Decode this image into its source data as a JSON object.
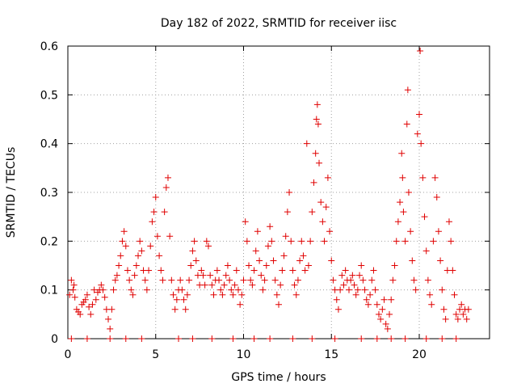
{
  "chart_data": {
    "type": "scatter",
    "title": "Day 182 of 2022, SRMTID for receiver iisc",
    "xlabel": "GPS time / hours",
    "ylabel": "SRMTID / TECUs",
    "xlim": [
      0,
      24
    ],
    "ylim": [
      0,
      0.6
    ],
    "xticks": [
      0,
      5,
      10,
      15,
      20
    ],
    "yticks": [
      0,
      0.1,
      0.2,
      0.3,
      0.4,
      0.5,
      0.6
    ],
    "xtick_labels": [
      "0",
      "5",
      "10",
      "15",
      "20"
    ],
    "ytick_labels": [
      "0",
      "0.1",
      "0.2",
      "0.3",
      "0.4",
      "0.5",
      "0.6"
    ],
    "grid": true,
    "marker": "+",
    "series": [
      {
        "name": "SRMTID",
        "color": "#e00000",
        "points": [
          [
            0.1,
            0.09
          ],
          [
            0.2,
            0.12
          ],
          [
            0.3,
            0.1
          ],
          [
            0.35,
            0.11
          ],
          [
            0.4,
            0.085
          ],
          [
            0.5,
            0.06
          ],
          [
            0.6,
            0.055
          ],
          [
            0.7,
            0.05
          ],
          [
            0.8,
            0.07
          ],
          [
            0.9,
            0.075
          ],
          [
            1.0,
            0.08
          ],
          [
            1.1,
            0.09
          ],
          [
            1.2,
            0.065
          ],
          [
            1.3,
            0.05
          ],
          [
            1.4,
            0.07
          ],
          [
            1.5,
            0.1
          ],
          [
            1.6,
            0.08
          ],
          [
            1.7,
            0.095
          ],
          [
            1.8,
            0.1
          ],
          [
            1.9,
            0.11
          ],
          [
            2.0,
            0.1
          ],
          [
            2.1,
            0.085
          ],
          [
            2.2,
            0.06
          ],
          [
            2.3,
            0.04
          ],
          [
            2.4,
            0.02
          ],
          [
            2.5,
            0.06
          ],
          [
            2.6,
            0.1
          ],
          [
            2.7,
            0.12
          ],
          [
            2.8,
            0.13
          ],
          [
            2.9,
            0.15
          ],
          [
            3.0,
            0.17
          ],
          [
            3.1,
            0.2
          ],
          [
            3.2,
            0.22
          ],
          [
            3.3,
            0.19
          ],
          [
            3.4,
            0.14
          ],
          [
            3.5,
            0.12
          ],
          [
            3.6,
            0.1
          ],
          [
            3.7,
            0.09
          ],
          [
            3.8,
            0.13
          ],
          [
            3.9,
            0.15
          ],
          [
            4.0,
            0.17
          ],
          [
            4.1,
            0.2
          ],
          [
            4.2,
            0.18
          ],
          [
            4.3,
            0.14
          ],
          [
            4.4,
            0.12
          ],
          [
            4.5,
            0.1
          ],
          [
            4.6,
            0.14
          ],
          [
            4.7,
            0.19
          ],
          [
            4.8,
            0.24
          ],
          [
            4.9,
            0.26
          ],
          [
            5.0,
            0.29
          ],
          [
            5.1,
            0.21
          ],
          [
            5.2,
            0.17
          ],
          [
            5.3,
            0.14
          ],
          [
            5.4,
            0.12
          ],
          [
            5.5,
            0.26
          ],
          [
            5.6,
            0.31
          ],
          [
            5.7,
            0.33
          ],
          [
            5.8,
            0.21
          ],
          [
            5.9,
            0.12
          ],
          [
            6.0,
            0.09
          ],
          [
            6.1,
            0.06
          ],
          [
            6.2,
            0.08
          ],
          [
            6.3,
            0.1
          ],
          [
            6.4,
            0.12
          ],
          [
            6.5,
            0.1
          ],
          [
            6.6,
            0.08
          ],
          [
            6.7,
            0.06
          ],
          [
            6.8,
            0.09
          ],
          [
            6.9,
            0.12
          ],
          [
            7.0,
            0.15
          ],
          [
            7.1,
            0.18
          ],
          [
            7.2,
            0.2
          ],
          [
            7.3,
            0.16
          ],
          [
            7.4,
            0.13
          ],
          [
            7.5,
            0.11
          ],
          [
            7.6,
            0.14
          ],
          [
            7.7,
            0.13
          ],
          [
            7.8,
            0.11
          ],
          [
            7.9,
            0.2
          ],
          [
            8.0,
            0.19
          ],
          [
            8.1,
            0.13
          ],
          [
            8.2,
            0.11
          ],
          [
            8.3,
            0.09
          ],
          [
            8.4,
            0.12
          ],
          [
            8.5,
            0.14
          ],
          [
            8.6,
            0.12
          ],
          [
            8.7,
            0.1
          ],
          [
            8.8,
            0.09
          ],
          [
            8.9,
            0.11
          ],
          [
            9.0,
            0.13
          ],
          [
            9.1,
            0.15
          ],
          [
            9.2,
            0.12
          ],
          [
            9.3,
            0.1
          ],
          [
            9.4,
            0.09
          ],
          [
            9.5,
            0.11
          ],
          [
            9.6,
            0.14
          ],
          [
            9.7,
            0.1
          ],
          [
            9.8,
            0.07
          ],
          [
            9.9,
            0.09
          ],
          [
            10.0,
            0.12
          ],
          [
            10.1,
            0.24
          ],
          [
            10.2,
            0.2
          ],
          [
            10.3,
            0.15
          ],
          [
            10.4,
            0.12
          ],
          [
            10.5,
            0.11
          ],
          [
            10.6,
            0.14
          ],
          [
            10.7,
            0.18
          ],
          [
            10.8,
            0.22
          ],
          [
            10.9,
            0.16
          ],
          [
            11.0,
            0.13
          ],
          [
            11.1,
            0.1
          ],
          [
            11.2,
            0.12
          ],
          [
            11.3,
            0.15
          ],
          [
            11.4,
            0.19
          ],
          [
            11.5,
            0.23
          ],
          [
            11.6,
            0.2
          ],
          [
            11.7,
            0.16
          ],
          [
            11.8,
            0.12
          ],
          [
            11.9,
            0.09
          ],
          [
            12.0,
            0.07
          ],
          [
            12.1,
            0.11
          ],
          [
            12.2,
            0.14
          ],
          [
            12.3,
            0.17
          ],
          [
            12.4,
            0.21
          ],
          [
            12.5,
            0.26
          ],
          [
            12.6,
            0.3
          ],
          [
            12.7,
            0.2
          ],
          [
            12.8,
            0.14
          ],
          [
            12.9,
            0.11
          ],
          [
            13.0,
            0.09
          ],
          [
            13.1,
            0.12
          ],
          [
            13.2,
            0.16
          ],
          [
            13.3,
            0.2
          ],
          [
            13.4,
            0.17
          ],
          [
            13.5,
            0.14
          ],
          [
            13.6,
            0.4
          ],
          [
            13.7,
            0.15
          ],
          [
            13.8,
            0.2
          ],
          [
            13.9,
            0.26
          ],
          [
            14.0,
            0.32
          ],
          [
            14.1,
            0.38
          ],
          [
            14.15,
            0.45
          ],
          [
            14.2,
            0.48
          ],
          [
            14.25,
            0.44
          ],
          [
            14.3,
            0.36
          ],
          [
            14.4,
            0.28
          ],
          [
            14.5,
            0.24
          ],
          [
            14.6,
            0.2
          ],
          [
            14.7,
            0.27
          ],
          [
            14.8,
            0.33
          ],
          [
            14.9,
            0.22
          ],
          [
            15.0,
            0.16
          ],
          [
            15.1,
            0.12
          ],
          [
            15.2,
            0.1
          ],
          [
            15.3,
            0.08
          ],
          [
            15.4,
            0.06
          ],
          [
            15.5,
            0.1
          ],
          [
            15.6,
            0.13
          ],
          [
            15.7,
            0.11
          ],
          [
            15.8,
            0.14
          ],
          [
            15.9,
            0.12
          ],
          [
            16.0,
            0.1
          ],
          [
            16.1,
            0.12
          ],
          [
            16.2,
            0.13
          ],
          [
            16.3,
            0.11
          ],
          [
            16.4,
            0.09
          ],
          [
            16.5,
            0.1
          ],
          [
            16.6,
            0.13
          ],
          [
            16.7,
            0.15
          ],
          [
            16.8,
            0.12
          ],
          [
            16.9,
            0.1
          ],
          [
            17.0,
            0.08
          ],
          [
            17.1,
            0.07
          ],
          [
            17.2,
            0.09
          ],
          [
            17.3,
            0.12
          ],
          [
            17.4,
            0.14
          ],
          [
            17.5,
            0.1
          ],
          [
            17.6,
            0.07
          ],
          [
            17.7,
            0.05
          ],
          [
            17.8,
            0.04
          ],
          [
            17.9,
            0.06
          ],
          [
            18.0,
            0.08
          ],
          [
            18.1,
            0.03
          ],
          [
            18.2,
            0.02
          ],
          [
            18.3,
            0.05
          ],
          [
            18.4,
            0.08
          ],
          [
            18.5,
            0.12
          ],
          [
            18.6,
            0.15
          ],
          [
            18.7,
            0.2
          ],
          [
            18.8,
            0.24
          ],
          [
            18.9,
            0.28
          ],
          [
            19.0,
            0.38
          ],
          [
            19.05,
            0.33
          ],
          [
            19.1,
            0.26
          ],
          [
            19.2,
            0.2
          ],
          [
            19.3,
            0.44
          ],
          [
            19.35,
            0.51
          ],
          [
            19.4,
            0.3
          ],
          [
            19.5,
            0.22
          ],
          [
            19.6,
            0.16
          ],
          [
            19.7,
            0.12
          ],
          [
            19.8,
            0.1
          ],
          [
            19.9,
            0.42
          ],
          [
            20.0,
            0.46
          ],
          [
            20.05,
            0.59
          ],
          [
            20.1,
            0.4
          ],
          [
            20.2,
            0.33
          ],
          [
            20.3,
            0.25
          ],
          [
            20.4,
            0.18
          ],
          [
            20.5,
            0.12
          ],
          [
            20.6,
            0.09
          ],
          [
            20.7,
            0.07
          ],
          [
            20.8,
            0.2
          ],
          [
            20.9,
            0.33
          ],
          [
            21.0,
            0.29
          ],
          [
            21.1,
            0.22
          ],
          [
            21.2,
            0.16
          ],
          [
            21.3,
            0.1
          ],
          [
            21.4,
            0.06
          ],
          [
            21.5,
            0.04
          ],
          [
            21.6,
            0.14
          ],
          [
            21.7,
            0.24
          ],
          [
            21.8,
            0.2
          ],
          [
            21.9,
            0.14
          ],
          [
            22.0,
            0.09
          ],
          [
            22.1,
            0.05
          ],
          [
            22.2,
            0.04
          ],
          [
            22.3,
            0.06
          ],
          [
            22.4,
            0.07
          ],
          [
            22.5,
            0.05
          ],
          [
            22.6,
            0.06
          ],
          [
            22.7,
            0.04
          ],
          [
            22.8,
            0.06
          ],
          [
            0.2,
            0.0
          ],
          [
            1.1,
            0.0
          ],
          [
            2.4,
            0.0
          ],
          [
            3.3,
            0.0
          ],
          [
            4.2,
            0.0
          ],
          [
            6.3,
            0.0
          ],
          [
            7.1,
            0.0
          ],
          [
            8.2,
            0.0
          ],
          [
            9.4,
            0.0
          ],
          [
            10.6,
            0.0
          ],
          [
            11.5,
            0.0
          ],
          [
            12.8,
            0.0
          ],
          [
            13.9,
            0.0
          ],
          [
            15.2,
            0.0
          ],
          [
            16.7,
            0.0
          ],
          [
            17.6,
            0.0
          ],
          [
            18.4,
            0.0
          ],
          [
            19.2,
            0.0
          ],
          [
            20.4,
            0.0
          ],
          [
            21.3,
            0.0
          ],
          [
            22.1,
            0.0
          ]
        ]
      }
    ]
  }
}
